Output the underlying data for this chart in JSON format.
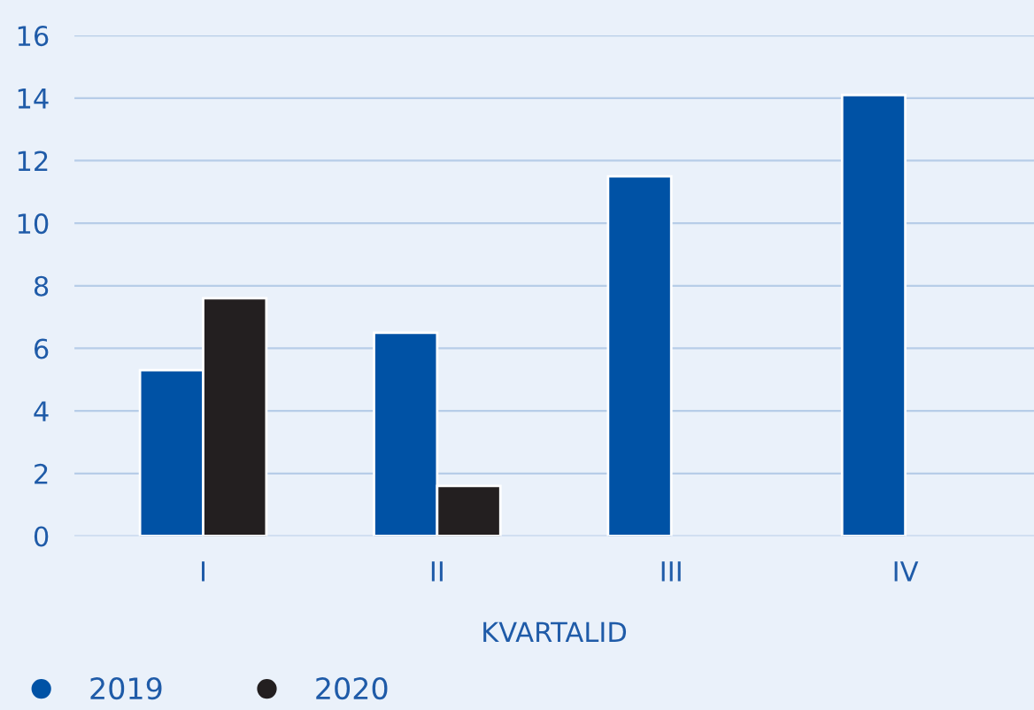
{
  "chart_data": {
    "type": "bar",
    "categories": [
      "I",
      "II",
      "III",
      "IV"
    ],
    "series": [
      {
        "name": "2019",
        "color": "#0052a5",
        "values": [
          5.3,
          6.5,
          11.5,
          14.1
        ]
      },
      {
        "name": "2020",
        "color": "#231f20",
        "values": [
          7.6,
          1.6,
          null,
          null
        ]
      }
    ],
    "xlabel": "KVARTALID",
    "ylim": [
      0,
      16
    ],
    "yticks": [
      0,
      2,
      4,
      6,
      8,
      10,
      12,
      14,
      16
    ],
    "grid": "y",
    "legend": "bottom left"
  }
}
